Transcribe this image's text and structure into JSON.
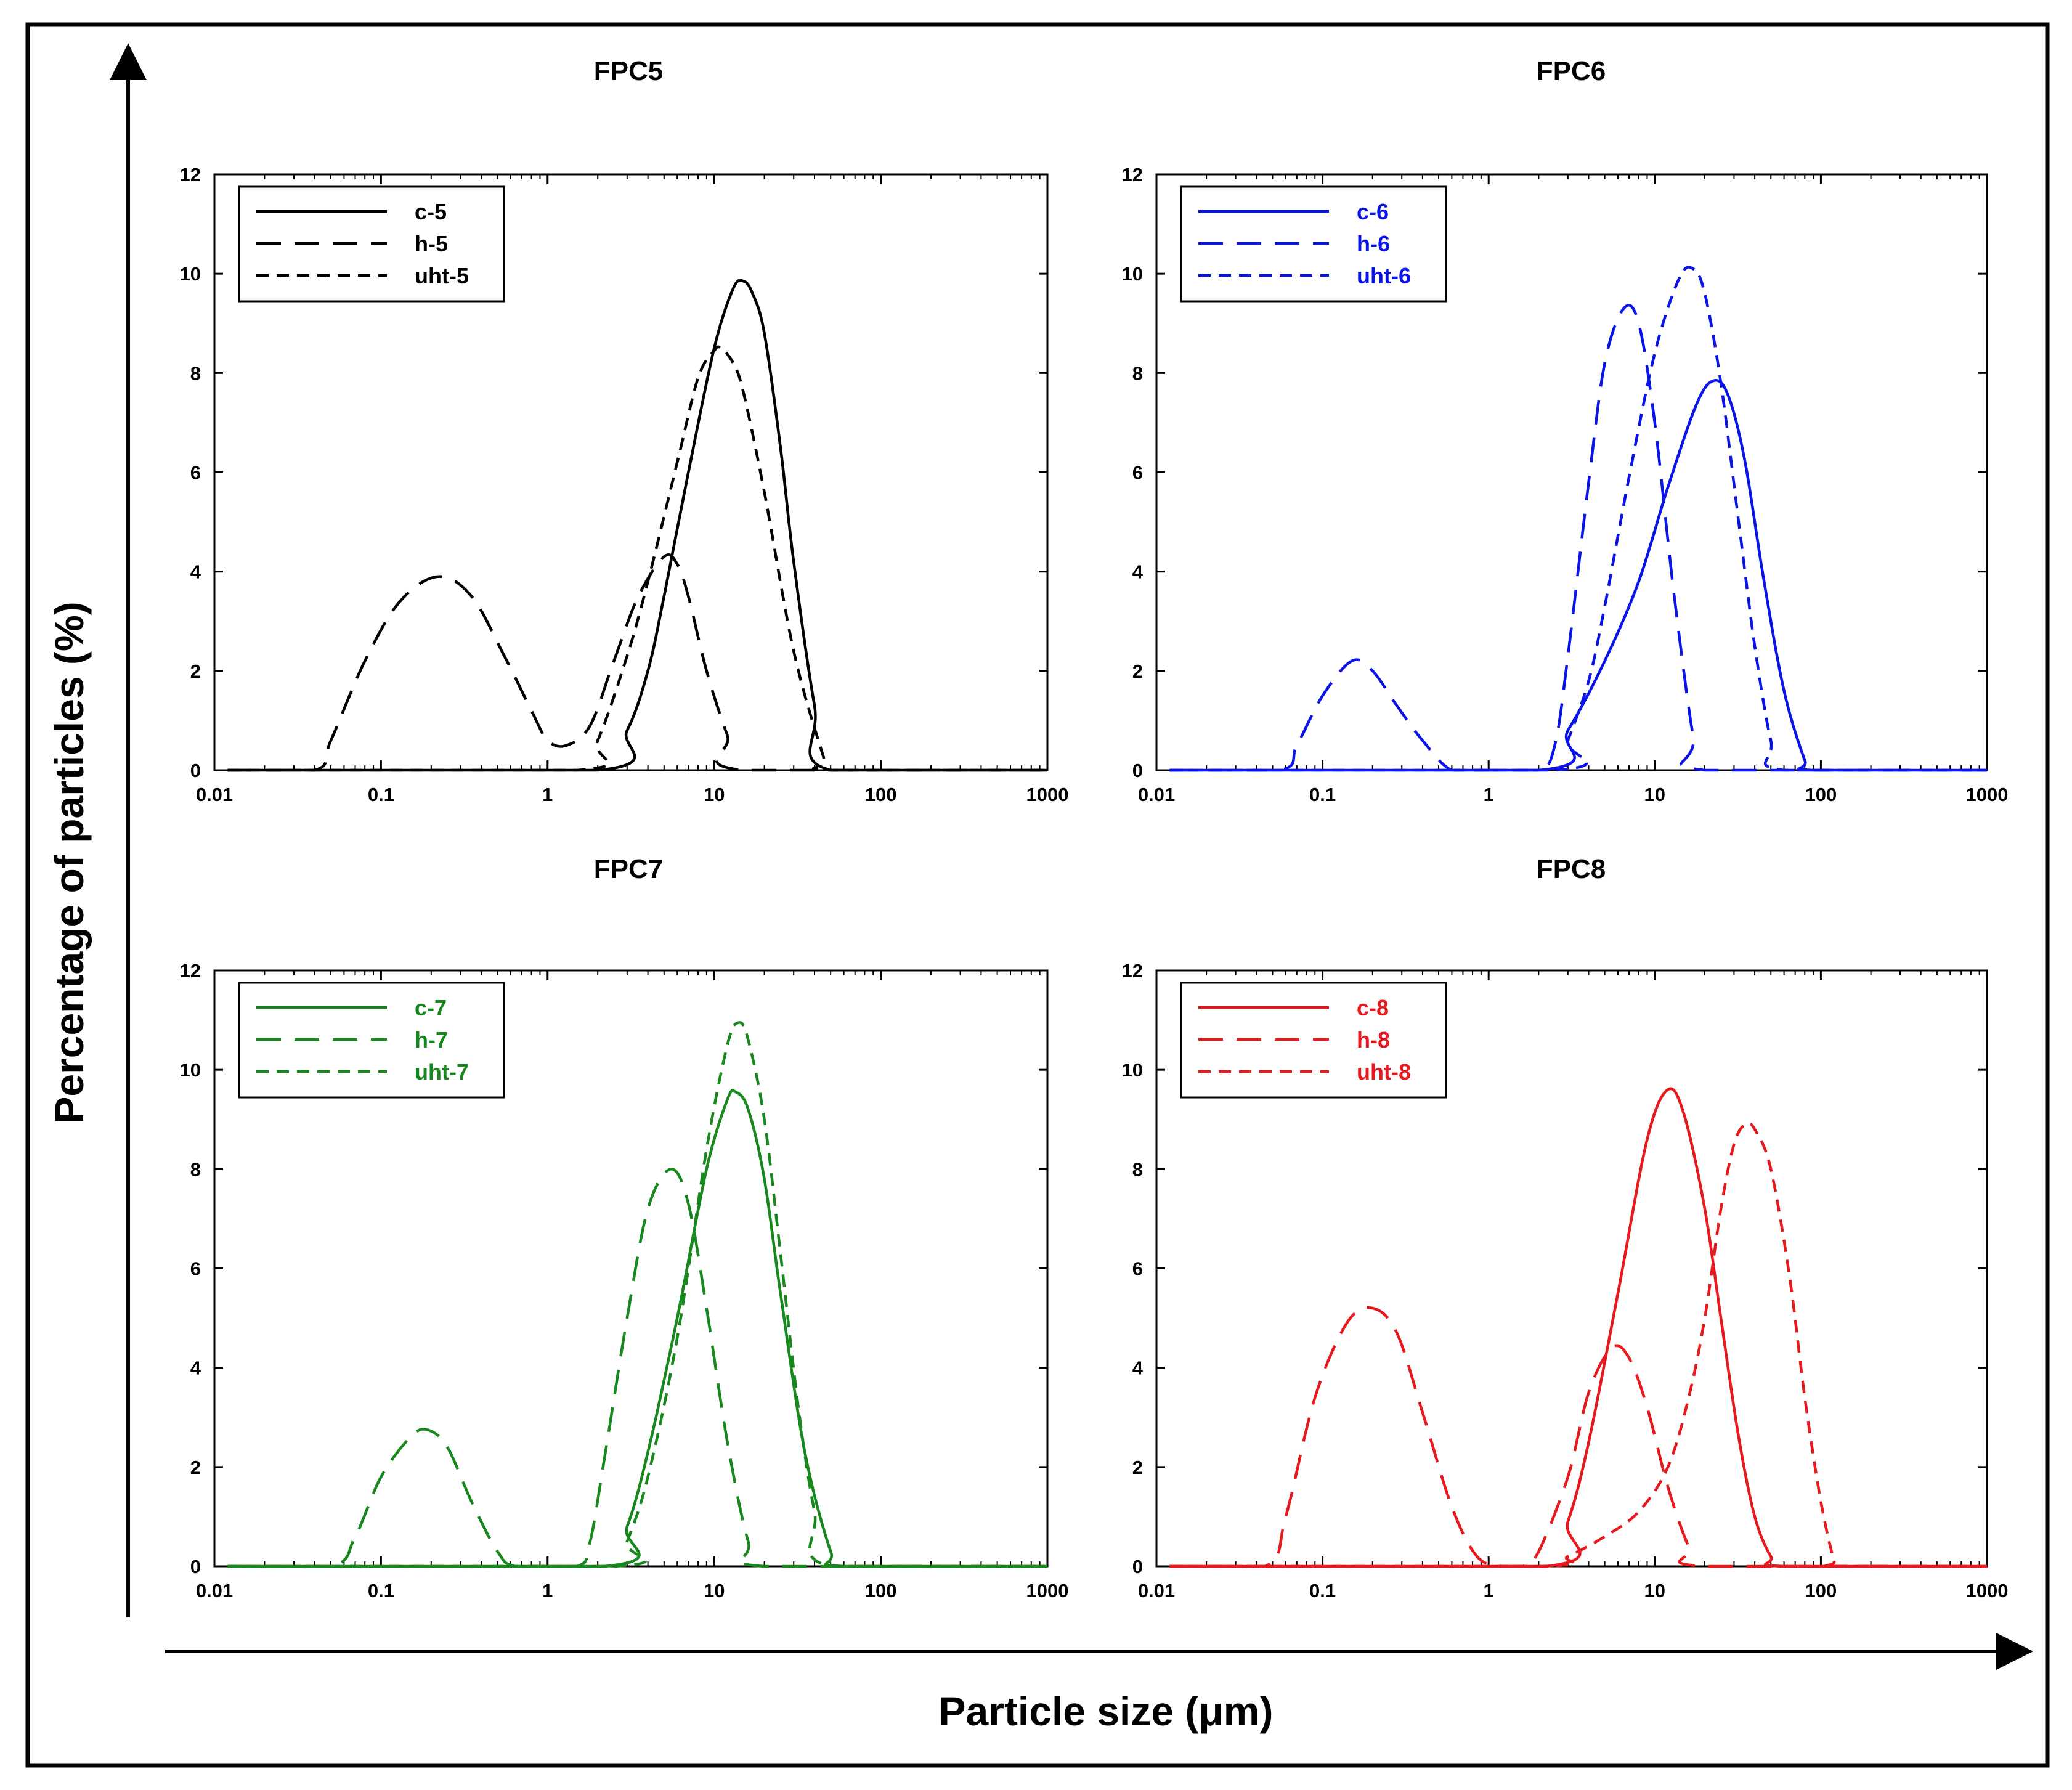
{
  "figure": {
    "ylabel": "Percentage of particles (%)",
    "xlabel": "Particle size (μm)"
  },
  "chart_data": [
    {
      "type": "line",
      "title": "FPC5",
      "color": "#000000",
      "xscale": "log",
      "xlim": [
        0.01,
        1000
      ],
      "ylim": [
        0,
        12
      ],
      "xticks": [
        "0.01",
        "0.1",
        "1",
        "10",
        "100",
        "1000"
      ],
      "yticks": [
        "0",
        "2",
        "4",
        "6",
        "8",
        "10",
        "12"
      ],
      "legend_position": "top-left",
      "series": [
        {
          "name": "c-5",
          "dash": "solid",
          "x": [
            0.012,
            2,
            3,
            4,
            5,
            7,
            10,
            13,
            15,
            17,
            20,
            25,
            30,
            40,
            50,
            1000
          ],
          "y": [
            0,
            0,
            0.8,
            2,
            3.5,
            6,
            8.5,
            9.7,
            9.85,
            9.6,
            8.8,
            6.5,
            4.2,
            1.3,
            0,
            0
          ]
        },
        {
          "name": "h-5",
          "dash": "long",
          "x": [
            0.012,
            0.04,
            0.05,
            0.08,
            0.13,
            0.22,
            0.35,
            0.55,
            0.8,
            1.0,
            1.3,
            1.8,
            2.5,
            3.5,
            5,
            6,
            7,
            9,
            12,
            15,
            1000
          ],
          "y": [
            0,
            0,
            0.6,
            2.2,
            3.4,
            3.9,
            3.5,
            2.3,
            1.2,
            0.6,
            0.5,
            0.9,
            2.2,
            3.5,
            4.3,
            4.15,
            3.5,
            2.0,
            0.7,
            0,
            0
          ]
        },
        {
          "name": "uht-5",
          "dash": "short",
          "x": [
            0.012,
            1.5,
            2,
            3,
            4,
            6,
            8,
            10,
            11,
            13,
            15,
            20,
            30,
            45,
            50,
            1000
          ],
          "y": [
            0,
            0,
            0.6,
            2.3,
            3.8,
            6.2,
            7.9,
            8.45,
            8.5,
            8.2,
            7.6,
            5.6,
            2.4,
            0.3,
            0,
            0
          ]
        }
      ]
    },
    {
      "type": "line",
      "title": "FPC6",
      "color": "#0a14e6",
      "xscale": "log",
      "xlim": [
        0.01,
        1000
      ],
      "ylim": [
        0,
        12
      ],
      "xticks": [
        "0.01",
        "0.1",
        "1",
        "10",
        "100",
        "1000"
      ],
      "yticks": [
        "0",
        "2",
        "4",
        "6",
        "8",
        "10",
        "12"
      ],
      "legend_position": "top-left",
      "series": [
        {
          "name": "c-6",
          "dash": "solid",
          "x": [
            0.012,
            2,
            3,
            5,
            8,
            12,
            18,
            23,
            28,
            35,
            45,
            60,
            80,
            90,
            1000
          ],
          "y": [
            0,
            0,
            0.8,
            2.2,
            3.8,
            5.7,
            7.4,
            7.85,
            7.5,
            6.2,
            3.9,
            1.6,
            0.2,
            0,
            0
          ]
        },
        {
          "name": "h-6",
          "dash": "long",
          "x": [
            0.012,
            0.055,
            0.07,
            0.1,
            0.15,
            0.2,
            0.28,
            0.4,
            0.6,
            1,
            2,
            2.5,
            3,
            4,
            5,
            6.5,
            8,
            10,
            13,
            17,
            20,
            1000
          ],
          "y": [
            0,
            0,
            0.5,
            1.5,
            2.2,
            2.0,
            1.3,
            0.6,
            0,
            0,
            0,
            0.5,
            2.3,
            5.8,
            8.2,
            9.3,
            9.0,
            7.0,
            3.6,
            0.7,
            0,
            0
          ]
        },
        {
          "name": "uht-6",
          "dash": "short",
          "x": [
            0.012,
            2.5,
            3,
            4,
            5,
            7,
            10,
            14,
            17,
            20,
            25,
            32,
            40,
            50,
            60,
            1000
          ],
          "y": [
            0,
            0,
            0.6,
            1.8,
            3.3,
            5.9,
            8.4,
            9.9,
            10.1,
            9.6,
            7.8,
            5.0,
            2.5,
            0.6,
            0,
            0
          ]
        }
      ]
    },
    {
      "type": "line",
      "title": "FPC7",
      "color": "#18881e",
      "xscale": "log",
      "xlim": [
        0.01,
        1000
      ],
      "ylim": [
        0,
        12
      ],
      "xticks": [
        "0.01",
        "0.1",
        "1",
        "10",
        "100",
        "1000"
      ],
      "yticks": [
        "0",
        "2",
        "4",
        "6",
        "8",
        "10",
        "12"
      ],
      "legend_position": "top-left",
      "series": [
        {
          "name": "c-7",
          "dash": "solid",
          "x": [
            0.012,
            2.2,
            3,
            4,
            6,
            9,
            12,
            13.5,
            16,
            20,
            25,
            35,
            50,
            60,
            1000
          ],
          "y": [
            0,
            0,
            0.8,
            2.3,
            5.0,
            8.0,
            9.4,
            9.55,
            9.2,
            7.8,
            5.5,
            2.3,
            0.3,
            0,
            0
          ]
        },
        {
          "name": "h-7",
          "dash": "long",
          "x": [
            0.012,
            0.05,
            0.07,
            0.1,
            0.15,
            0.19,
            0.25,
            0.35,
            0.5,
            0.65,
            1.5,
            1.8,
            2.2,
            3,
            4,
            5.5,
            7,
            9,
            12,
            16,
            20,
            1000
          ],
          "y": [
            0,
            0,
            0.6,
            1.8,
            2.6,
            2.75,
            2.4,
            1.3,
            0.3,
            0,
            0,
            0.5,
            2.2,
            5.0,
            7.2,
            8.0,
            7.3,
            5.2,
            2.5,
            0.5,
            0,
            0
          ]
        },
        {
          "name": "uht-7",
          "dash": "short",
          "x": [
            0.012,
            2.5,
            3,
            4,
            6,
            9,
            12,
            14,
            16,
            20,
            25,
            32,
            40,
            50,
            1000
          ],
          "y": [
            0,
            0,
            0.5,
            1.8,
            4.6,
            8.4,
            10.5,
            10.95,
            10.6,
            9.0,
            6.3,
            3.2,
            1.1,
            0,
            0
          ]
        }
      ]
    },
    {
      "type": "line",
      "title": "FPC8",
      "color": "#e6191e",
      "xscale": "log",
      "xlim": [
        0.01,
        1000
      ],
      "ylim": [
        0,
        12
      ],
      "xticks": [
        "0.01",
        "0.1",
        "1",
        "10",
        "100",
        "1000"
      ],
      "yticks": [
        "0",
        "2",
        "4",
        "6",
        "8",
        "10",
        "12"
      ],
      "legend_position": "top-left",
      "series": [
        {
          "name": "c-8",
          "dash": "solid",
          "x": [
            0.012,
            2.2,
            3,
            4,
            6,
            9,
            12,
            15,
            20,
            25,
            32,
            40,
            50,
            60,
            1000
          ],
          "y": [
            0,
            0,
            0.9,
            2.5,
            5.5,
            8.6,
            9.6,
            9.1,
            7.2,
            5.0,
            2.6,
            1.0,
            0.2,
            0,
            0
          ]
        },
        {
          "name": "h-8",
          "dash": "long",
          "x": [
            0.012,
            0.045,
            0.06,
            0.09,
            0.14,
            0.2,
            0.28,
            0.4,
            0.6,
            0.85,
            1.2,
            1.6,
            2,
            3,
            4,
            5.5,
            7,
            9,
            12,
            16,
            20,
            1000
          ],
          "y": [
            0,
            0,
            1.0,
            3.4,
            4.9,
            5.2,
            4.7,
            3.1,
            1.2,
            0.2,
            0,
            0,
            0.3,
            1.8,
            3.5,
            4.4,
            4.2,
            3.2,
            1.6,
            0.4,
            0,
            0
          ]
        },
        {
          "name": "uht-8",
          "dash": "short",
          "x": [
            0.012,
            2,
            3,
            5,
            8,
            12,
            16,
            20,
            25,
            30,
            35,
            40,
            50,
            65,
            80,
            100,
            120,
            125,
            1000
          ],
          "y": [
            0,
            0,
            0.2,
            0.6,
            1.1,
            2.0,
            3.4,
            5.0,
            7.2,
            8.5,
            8.9,
            8.8,
            8.0,
            5.8,
            3.4,
            1.3,
            0.1,
            0,
            0
          ]
        }
      ]
    }
  ]
}
